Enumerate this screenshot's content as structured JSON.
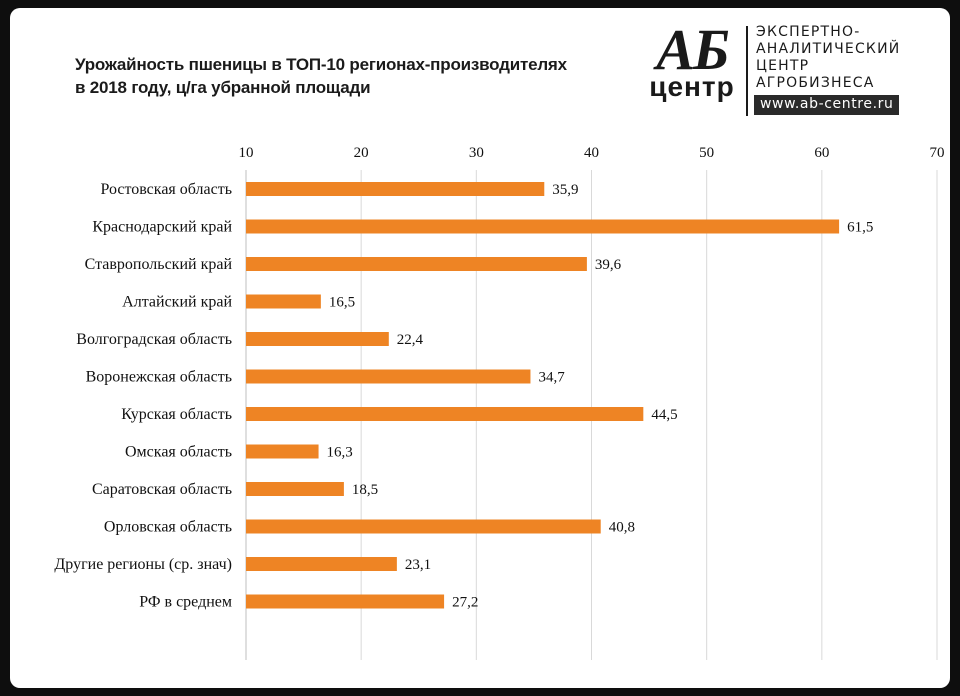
{
  "logo": {
    "ab": "АБ",
    "centr": "центр",
    "lines": [
      "ЭКСПЕРТНО-",
      "АНАЛИТИЧЕСКИЙ",
      "ЦЕНТР",
      "АГРОБИЗНЕСА"
    ],
    "url": "www.ab-centre.ru"
  },
  "chart_data": {
    "type": "bar",
    "orientation": "horizontal",
    "title_lines": [
      "Урожайность пшеницы в ТОП-10 регионах-производителях",
      "в 2018 году, ц/га убранной площади"
    ],
    "categories": [
      "Ростовская область",
      "Краснодарский край",
      "Ставропольский край",
      "Алтайский край",
      "Волгоградская область",
      "Воронежская область",
      "Курская область",
      "Омская область",
      "Саратовская область",
      "Орловская область",
      "Другие регионы (ср. знач)",
      "РФ в среднем"
    ],
    "values": [
      35.9,
      61.5,
      39.6,
      16.5,
      22.4,
      34.7,
      44.5,
      16.3,
      18.5,
      40.8,
      23.1,
      27.2
    ],
    "value_labels": [
      "35,9",
      "61,5",
      "39,6",
      "16,5",
      "22,4",
      "34,7",
      "44,5",
      "16,3",
      "18,5",
      "40,8",
      "23,1",
      "27,2"
    ],
    "xlim": [
      10,
      70
    ],
    "xticks": [
      "10",
      "20",
      "30",
      "40",
      "50",
      "60",
      "70"
    ],
    "axis_position": "top",
    "grid": true,
    "bar_color": "#ee8424",
    "grid_color": "#d9d9d9"
  }
}
